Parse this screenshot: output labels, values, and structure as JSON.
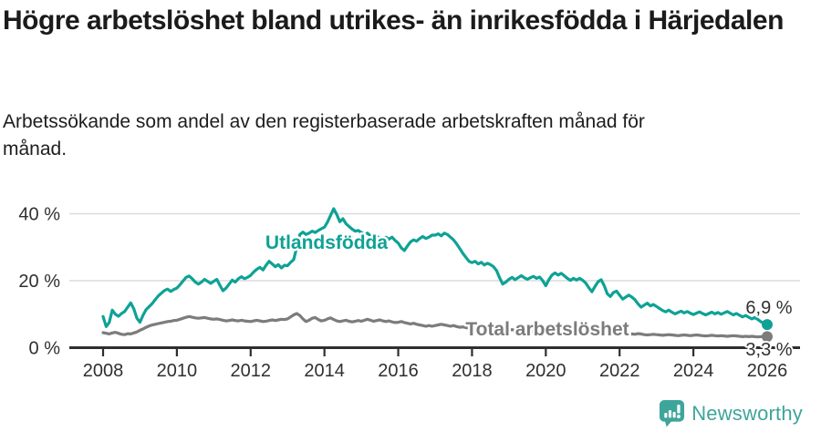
{
  "header": {
    "title": "Högre arbetslöshet bland utrikes- än inrikesfödda i Härjedalen",
    "subtitle": "Arbetssökande som andel av den registerbaserade arbetskraften månad för månad."
  },
  "chart_data": {
    "type": "line",
    "title": "Högre arbetslöshet bland utrikes- än inrikesfödda i Härjedalen",
    "x_unit": "month",
    "x_start": "2008-01",
    "x_end": "2026-01",
    "x_tick_labels": [
      "2008",
      "2010",
      "2012",
      "2014",
      "2016",
      "2018",
      "2020",
      "2022",
      "2024",
      "2026"
    ],
    "y_ticks": [
      0,
      20,
      40
    ],
    "y_tick_labels": [
      "0 %",
      "20 %",
      "40 %"
    ],
    "ylim": [
      0,
      44
    ],
    "grid": "horizontal-only",
    "legend": "inline-labels",
    "colors": {
      "grid": "#dcdcdc",
      "axis": "#2e2e2e",
      "tick_text": "#303030"
    },
    "series": [
      {
        "name": "Utlandsfödda",
        "color": "#0ea295",
        "end_label": "6,9 %",
        "end_value": 6.9,
        "values": [
          9.3,
          6.3,
          7.5,
          11.2,
          10.0,
          9.4,
          10.2,
          10.8,
          12.1,
          13.4,
          11.6,
          8.8,
          7.6,
          9.7,
          11.4,
          12.3,
          13.2,
          14.4,
          15.5,
          16.3,
          17.1,
          17.5,
          16.8,
          17.4,
          17.8,
          18.8,
          19.9,
          21.0,
          21.4,
          20.6,
          19.6,
          19.0,
          19.6,
          20.4,
          19.8,
          19.2,
          19.8,
          20.4,
          18.6,
          17.0,
          17.8,
          19.0,
          20.2,
          19.6,
          20.6,
          21.2,
          20.6,
          21.0,
          21.6,
          22.6,
          23.4,
          24.0,
          23.2,
          24.6,
          25.8,
          25.0,
          24.2,
          24.8,
          23.8,
          24.6,
          24.5,
          25.5,
          26.3,
          30.0,
          33.8,
          34.5,
          33.8,
          34.2,
          34.8,
          34.4,
          35.0,
          35.5,
          36.0,
          37.5,
          39.5,
          41.5,
          39.8,
          37.6,
          38.5,
          37.0,
          36.2,
          35.4,
          34.8,
          35.0,
          34.4,
          33.8,
          34.2,
          33.4,
          32.8,
          33.4,
          32.6,
          32.3,
          33.0,
          32.4,
          33.0,
          32.0,
          31.2,
          29.8,
          29.0,
          30.4,
          31.6,
          32.2,
          31.8,
          32.6,
          33.2,
          32.6,
          33.0,
          33.6,
          33.6,
          34.0,
          33.4,
          34.2,
          33.8,
          33.0,
          32.2,
          31.0,
          29.6,
          28.2,
          27.0,
          25.8,
          25.4,
          25.8,
          25.0,
          25.5,
          24.7,
          25.2,
          24.8,
          24.2,
          23.0,
          20.8,
          19.0,
          19.6,
          20.4,
          21.0,
          20.3,
          20.9,
          21.5,
          20.9,
          20.4,
          20.9,
          21.3,
          20.7,
          21.1,
          20.0,
          18.5,
          20.3,
          21.7,
          22.3,
          21.7,
          22.2,
          21.5,
          20.7,
          20.1,
          20.7,
          20.2,
          20.7,
          20.1,
          19.3,
          17.9,
          16.7,
          18.3,
          19.7,
          20.3,
          18.5,
          16.1,
          15.3,
          16.5,
          16.9,
          15.7,
          14.5,
          15.1,
          15.7,
          15.1,
          14.3,
          13.1,
          12.1,
          12.7,
          13.3,
          12.5,
          12.9,
          12.3,
          11.7,
          11.1,
          10.7,
          11.2,
          10.6,
          10.1,
          10.5,
          10.9,
          10.4,
          10.8,
          10.3,
          9.9,
          10.3,
          10.7,
          10.2,
          9.8,
          10.2,
          10.6,
          10.1,
          10.5,
          10.0,
          10.4,
          10.8,
          10.3,
          9.8,
          10.2,
          9.7,
          9.2,
          9.6,
          9.1,
          8.6,
          9.0,
          8.4,
          7.7,
          7.3,
          6.9
        ]
      },
      {
        "name": "Total arbetslöshet",
        "color": "#7c7c7c",
        "end_label": "3,3 %",
        "end_value": 3.3,
        "values": [
          4.5,
          4.3,
          4.1,
          4.4,
          4.6,
          4.3,
          4.0,
          3.9,
          4.2,
          4.1,
          4.4,
          4.7,
          5.2,
          5.6,
          6.1,
          6.5,
          6.8,
          7.0,
          7.2,
          7.4,
          7.6,
          7.8,
          7.9,
          8.1,
          8.2,
          8.5,
          8.8,
          9.1,
          9.3,
          9.1,
          8.9,
          8.8,
          8.9,
          9.0,
          8.8,
          8.6,
          8.5,
          8.6,
          8.4,
          8.2,
          8.0,
          8.1,
          8.3,
          8.1,
          8.0,
          8.2,
          8.0,
          7.9,
          7.8,
          8.0,
          8.2,
          8.0,
          7.8,
          7.9,
          8.1,
          8.3,
          8.1,
          8.3,
          8.5,
          8.4,
          8.6,
          9.2,
          9.8,
          10.2,
          9.6,
          8.6,
          7.8,
          8.2,
          8.8,
          9.0,
          8.4,
          8.0,
          8.2,
          8.6,
          8.9,
          8.4,
          8.0,
          7.8,
          8.0,
          8.2,
          7.9,
          7.7,
          7.9,
          8.1,
          7.9,
          8.2,
          8.5,
          8.2,
          7.9,
          8.1,
          8.3,
          8.0,
          7.8,
          8.0,
          7.7,
          7.5,
          7.6,
          7.8,
          7.5,
          7.3,
          7.1,
          7.3,
          7.0,
          6.8,
          6.6,
          6.4,
          6.6,
          6.4,
          6.6,
          6.8,
          7.0,
          6.8,
          6.6,
          6.4,
          6.6,
          6.3,
          6.1,
          6.2,
          6.0,
          5.8,
          6.0,
          6.2,
          6.0,
          5.8,
          5.6,
          5.8,
          5.6,
          5.4,
          5.2,
          5.4,
          5.2,
          5.1,
          5.2,
          5.4,
          5.2,
          5.0,
          5.1,
          4.9,
          4.8,
          4.9,
          4.7,
          4.8,
          4.6,
          4.7,
          4.9,
          5.3,
          5.7,
          5.9,
          5.7,
          5.5,
          5.3,
          5.1,
          4.9,
          4.8,
          4.6,
          4.7,
          4.8,
          4.7,
          4.5,
          4.4,
          4.5,
          4.3,
          4.2,
          4.3,
          4.1,
          4.0,
          4.1,
          4.2,
          4.1,
          4.0,
          3.9,
          4.0,
          4.1,
          4.0,
          4.2,
          4.1,
          3.9,
          3.8,
          3.9,
          4.0,
          3.9,
          3.8,
          3.7,
          3.8,
          3.9,
          3.8,
          3.7,
          3.6,
          3.7,
          3.8,
          3.7,
          3.6,
          3.7,
          3.8,
          3.7,
          3.6,
          3.5,
          3.6,
          3.7,
          3.6,
          3.5,
          3.6,
          3.5,
          3.4,
          3.5,
          3.6,
          3.5,
          3.4,
          3.3,
          3.4,
          3.3,
          3.4,
          3.3,
          3.2,
          3.3,
          3.3,
          3.3
        ]
      }
    ]
  },
  "footer": {
    "brand": "Newsworthy",
    "brand_color": "#3ea59b"
  }
}
